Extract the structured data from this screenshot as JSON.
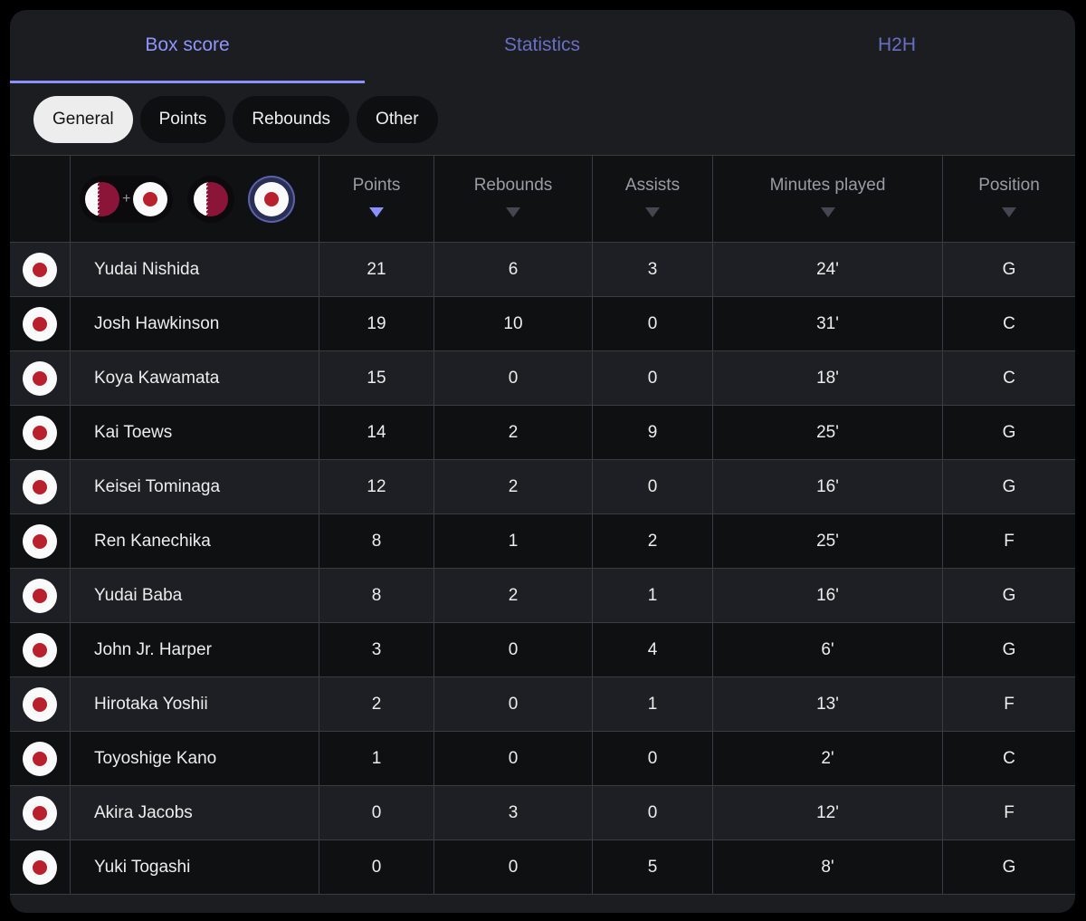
{
  "tabs": [
    {
      "label": "Box score",
      "active": true
    },
    {
      "label": "Statistics",
      "active": false
    },
    {
      "label": "H2H",
      "active": false
    }
  ],
  "chips": [
    {
      "label": "General",
      "active": true
    },
    {
      "label": "Points",
      "active": false
    },
    {
      "label": "Rebounds",
      "active": false
    },
    {
      "label": "Other",
      "active": false
    }
  ],
  "team_filter": {
    "combined_plus": "+",
    "qatar_flag_icon": "qatar-flag-icon",
    "japan_flag_icon": "japan-flag-icon",
    "selected": "japan"
  },
  "columns": {
    "points": "Points",
    "rebounds": "Rebounds",
    "assists": "Assists",
    "minutes": "Minutes played",
    "position": "Position",
    "sorted_by": "points"
  },
  "colors": {
    "accent": "#8b90ff",
    "background": "#1b1d21",
    "japan_red": "#b8202e",
    "qatar_maroon": "#8a1538"
  },
  "players": [
    {
      "name": "Yudai Nishida",
      "points": "21",
      "rebounds": "6",
      "assists": "3",
      "minutes": "24'",
      "position": "G"
    },
    {
      "name": "Josh Hawkinson",
      "points": "19",
      "rebounds": "10",
      "assists": "0",
      "minutes": "31'",
      "position": "C"
    },
    {
      "name": "Koya Kawamata",
      "points": "15",
      "rebounds": "0",
      "assists": "0",
      "minutes": "18'",
      "position": "C"
    },
    {
      "name": "Kai Toews",
      "points": "14",
      "rebounds": "2",
      "assists": "9",
      "minutes": "25'",
      "position": "G"
    },
    {
      "name": "Keisei Tominaga",
      "points": "12",
      "rebounds": "2",
      "assists": "0",
      "minutes": "16'",
      "position": "G"
    },
    {
      "name": "Ren Kanechika",
      "points": "8",
      "rebounds": "1",
      "assists": "2",
      "minutes": "25'",
      "position": "F"
    },
    {
      "name": "Yudai Baba",
      "points": "8",
      "rebounds": "2",
      "assists": "1",
      "minutes": "16'",
      "position": "G"
    },
    {
      "name": "John Jr. Harper",
      "points": "3",
      "rebounds": "0",
      "assists": "4",
      "minutes": "6'",
      "position": "G"
    },
    {
      "name": "Hirotaka Yoshii",
      "points": "2",
      "rebounds": "0",
      "assists": "1",
      "minutes": "13'",
      "position": "F"
    },
    {
      "name": "Toyoshige Kano",
      "points": "1",
      "rebounds": "0",
      "assists": "0",
      "minutes": "2'",
      "position": "C"
    },
    {
      "name": "Akira Jacobs",
      "points": "0",
      "rebounds": "3",
      "assists": "0",
      "minutes": "12'",
      "position": "F"
    },
    {
      "name": "Yuki Togashi",
      "points": "0",
      "rebounds": "0",
      "assists": "5",
      "minutes": "8'",
      "position": "G"
    }
  ]
}
